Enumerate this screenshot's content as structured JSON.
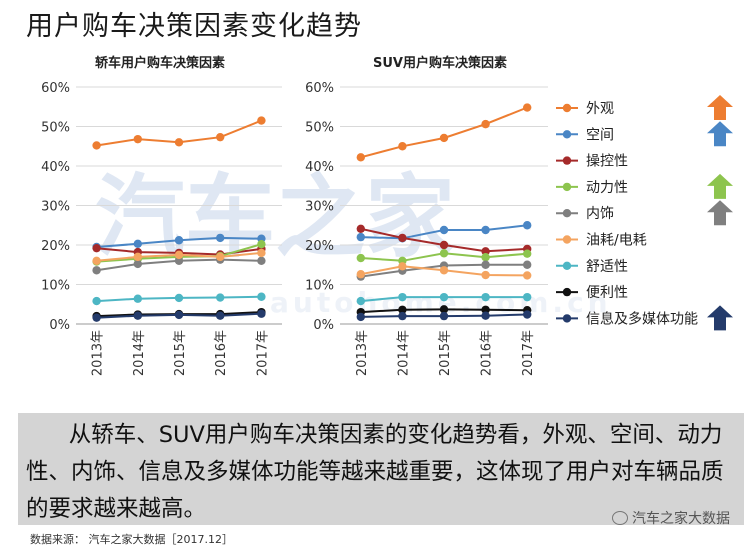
{
  "page": {
    "title": "用户购车决策因素变化趋势",
    "summary": "从轿车、SUV用户购车决策因素的变化趋势看，外观、空间、动力性、内饰、信息及多媒体功能等越来越重要，这体现了用户对车辆品质的要求越来越高。",
    "source": "数据来源： 汽车之家大数据［2017.12］",
    "brand": "汽车之家大数据",
    "watermark": "汽车之家",
    "watermark_sub": "autohome.com.cn"
  },
  "colors": {
    "外观": "#ED7D31",
    "空间": "#4A86C5",
    "操控性": "#A52A2A",
    "动力性": "#8DC44E",
    "内饰": "#7F7F7F",
    "油耗/电耗": "#F4A460",
    "舒适性": "#4DB6C4",
    "便利性": "#111111",
    "信息及多媒体功能": "#243B6B"
  },
  "legend": [
    "外观",
    "空间",
    "操控性",
    "动力性",
    "内饰",
    "油耗/电耗",
    "舒适性",
    "便利性",
    "信息及多媒体功能"
  ],
  "trend_arrows": [
    {
      "factor": "外观",
      "direction": "up",
      "color": "#ED7D31"
    },
    {
      "factor": "空间",
      "direction": "up",
      "color": "#4A86C5"
    },
    {
      "factor": "动力性",
      "direction": "up",
      "color": "#8DC44E"
    },
    {
      "factor": "内饰",
      "direction": "up",
      "color": "#7F7F7F"
    },
    {
      "factor": "信息及多媒体功能",
      "direction": "up",
      "color": "#243B6B"
    }
  ],
  "chart_data": [
    {
      "type": "line",
      "title": "轿车用户购车决策因素",
      "categories": [
        "2013年",
        "2014年",
        "2015年",
        "2016年",
        "2017年"
      ],
      "yticks": [
        "0%",
        "10%",
        "20%",
        "30%",
        "40%",
        "50%",
        "60%"
      ],
      "ylim": [
        0,
        60
      ],
      "grid": true,
      "series": [
        {
          "name": "外观",
          "values": [
            45.2,
            46.8,
            46.0,
            47.3,
            51.5
          ]
        },
        {
          "name": "空间",
          "values": [
            19.5,
            20.3,
            21.2,
            21.8,
            21.6
          ]
        },
        {
          "name": "操控性",
          "values": [
            19.2,
            18.2,
            18.0,
            17.6,
            19.0
          ]
        },
        {
          "name": "动力性",
          "values": [
            15.8,
            16.5,
            17.0,
            17.2,
            20.2
          ]
        },
        {
          "name": "内饰",
          "values": [
            13.6,
            15.2,
            16.0,
            16.3,
            16.0
          ]
        },
        {
          "name": "油耗/电耗",
          "values": [
            16.0,
            17.0,
            17.5,
            17.0,
            18.0
          ]
        },
        {
          "name": "舒适性",
          "values": [
            5.8,
            6.4,
            6.6,
            6.7,
            6.9
          ]
        },
        {
          "name": "便利性",
          "values": [
            2.0,
            2.4,
            2.5,
            2.5,
            3.0
          ]
        },
        {
          "name": "信息及多媒体功能",
          "values": [
            1.6,
            2.1,
            2.3,
            2.1,
            2.6
          ]
        }
      ]
    },
    {
      "type": "line",
      "title": "SUV用户购车决策因素",
      "categories": [
        "2013年",
        "2014年",
        "2015年",
        "2016年",
        "2017年"
      ],
      "yticks": [
        "0%",
        "10%",
        "20%",
        "30%",
        "40%",
        "50%",
        "60%"
      ],
      "ylim": [
        0,
        60
      ],
      "grid": true,
      "series": [
        {
          "name": "外观",
          "values": [
            42.2,
            45.0,
            47.1,
            50.6,
            54.8
          ]
        },
        {
          "name": "空间",
          "values": [
            22.0,
            21.7,
            23.8,
            23.8,
            25.0
          ]
        },
        {
          "name": "操控性",
          "values": [
            24.1,
            21.8,
            20.0,
            18.4,
            19.0
          ]
        },
        {
          "name": "动力性",
          "values": [
            16.7,
            16.0,
            17.9,
            16.9,
            17.8
          ]
        },
        {
          "name": "内饰",
          "values": [
            12.0,
            13.5,
            14.8,
            15.0,
            15.0
          ]
        },
        {
          "name": "油耗/电耗",
          "values": [
            12.6,
            14.6,
            13.6,
            12.4,
            12.3
          ]
        },
        {
          "name": "舒适性",
          "values": [
            5.8,
            6.8,
            6.8,
            6.8,
            6.8
          ]
        },
        {
          "name": "便利性",
          "values": [
            3.0,
            3.6,
            3.7,
            3.6,
            3.5
          ]
        },
        {
          "name": "信息及多媒体功能",
          "values": [
            1.8,
            2.0,
            2.0,
            2.1,
            2.4
          ]
        }
      ]
    }
  ]
}
